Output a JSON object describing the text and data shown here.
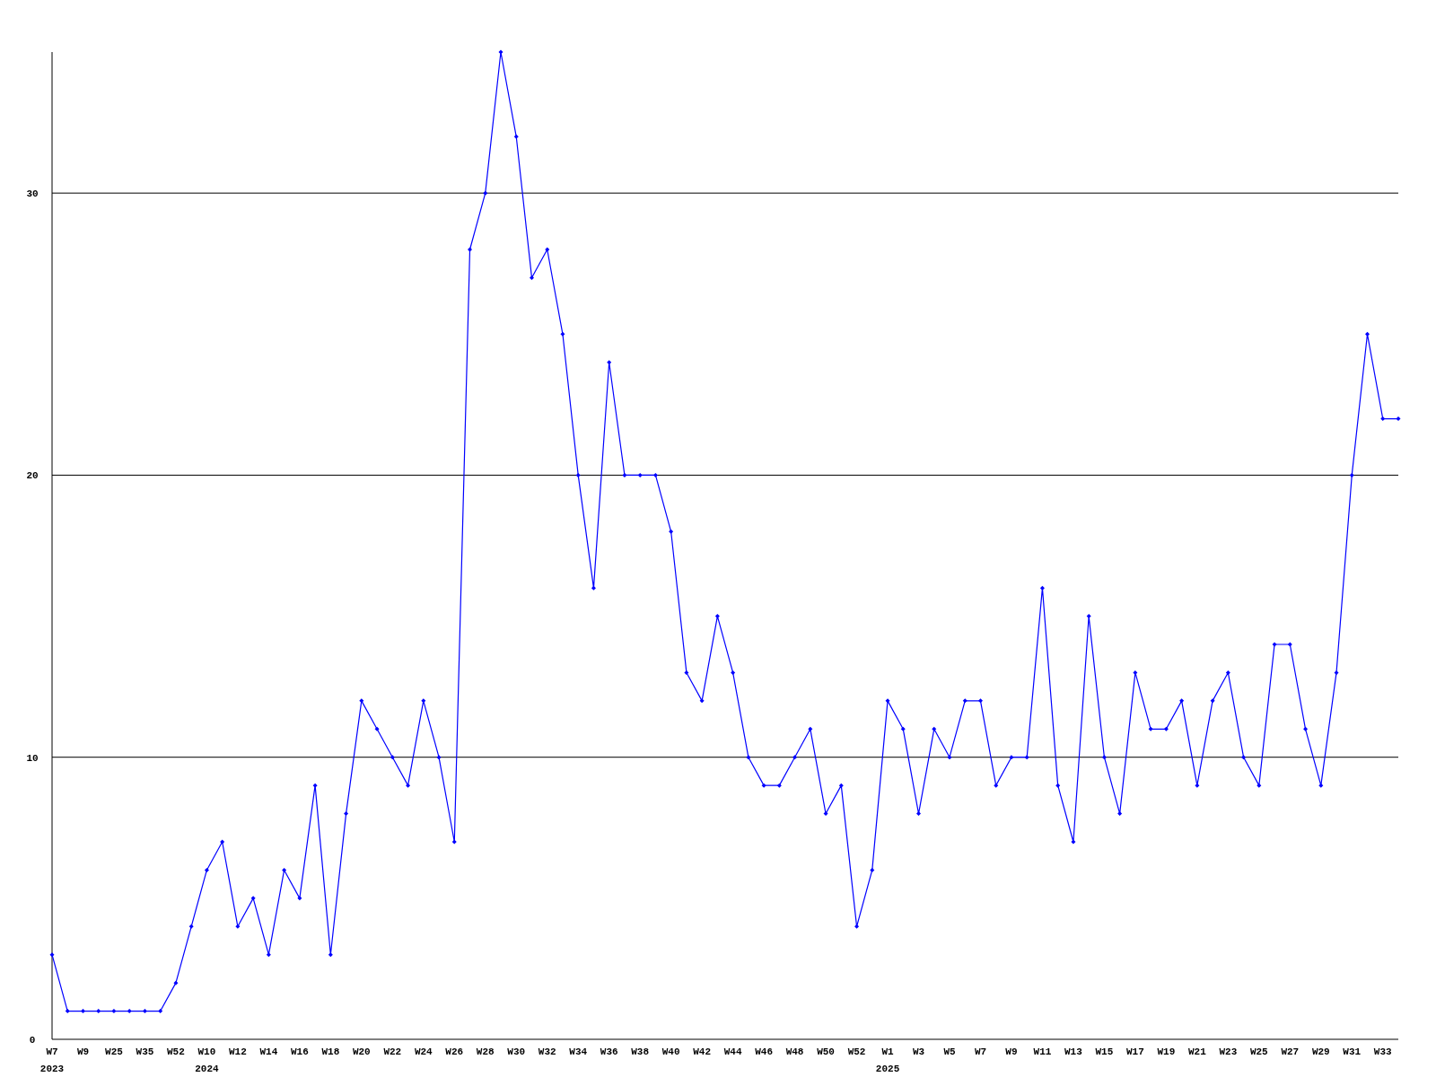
{
  "chart_data": {
    "type": "line",
    "categories": [
      "W7\n2023",
      null,
      "W9",
      null,
      "W25",
      null,
      "W35",
      null,
      "W52",
      null,
      "W10\n2024",
      null,
      "W12",
      null,
      "W14",
      null,
      "W16",
      null,
      "W18",
      null,
      "W20",
      null,
      "W22",
      null,
      "W24",
      null,
      "W26",
      null,
      "W28",
      null,
      "W30",
      null,
      "W32",
      null,
      "W34",
      null,
      "W36",
      null,
      "W38",
      null,
      "W40",
      null,
      "W42",
      null,
      "W44",
      null,
      "W46",
      null,
      "W48",
      null,
      "W50",
      null,
      "W52",
      null,
      "W1\n2025",
      null,
      "W3",
      null,
      "W5",
      null,
      "W7",
      null,
      "W9",
      null,
      "W11",
      null,
      "W13",
      null,
      "W15",
      null,
      "W17",
      null,
      "W19",
      null,
      "W21",
      null,
      "W23",
      null,
      "W25",
      null,
      "W27",
      null,
      "W29",
      null,
      "W31",
      null,
      "W33",
      null
    ],
    "series": [
      {
        "color": "#0000ff",
        "values": [
          3,
          1,
          1,
          1,
          1,
          1,
          1,
          1,
          2,
          4,
          6,
          7,
          4,
          5,
          3,
          6,
          5,
          9,
          3,
          8,
          12,
          11,
          10,
          9,
          12,
          10,
          7,
          28,
          30,
          35,
          32,
          27,
          28,
          25,
          20,
          16,
          24,
          20,
          20,
          20,
          18,
          13,
          12,
          15,
          13,
          10,
          9,
          9,
          10,
          11,
          8,
          9,
          4,
          6,
          12,
          11,
          8,
          11,
          10,
          12,
          12,
          9,
          10,
          10,
          16,
          9,
          7,
          15,
          10,
          8,
          13,
          11,
          11,
          12,
          9,
          12,
          13,
          10,
          9,
          14,
          14,
          11,
          9,
          13,
          20,
          25,
          22,
          22
        ]
      }
    ],
    "ylim": [
      0,
      35
    ],
    "yticks": [
      0,
      10,
      20,
      30
    ],
    "grid": "y",
    "marker": "diamond",
    "line_style": "solid"
  }
}
